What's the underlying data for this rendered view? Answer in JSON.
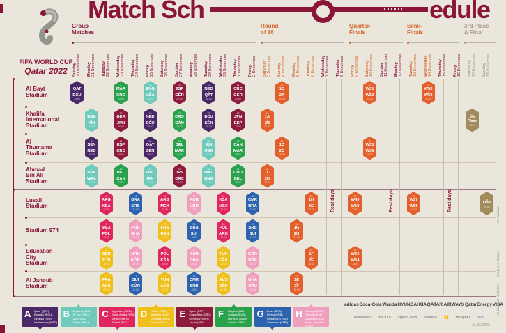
{
  "title": {
    "part1": "Match Sch",
    "part2": "edule"
  },
  "logo": {
    "line1": "FIFA WORLD CUP",
    "line2": "Qatar 2022"
  },
  "palette": {
    "A": "#4A2767",
    "B": "#6FCABB",
    "C": "#E0265F",
    "D": "#EFBF1B",
    "E": "#8D1B3D",
    "F": "#2AA24D",
    "G": "#2D62AE",
    "H": "#EF9EBE",
    "KO": "#E35F2C",
    "GOLD": "#A18A5B",
    "maroon": "#8A1538",
    "orange": "#D4692F",
    "gray": "#A49A8B"
  },
  "sections": [
    {
      "id": "group",
      "lines": "Group\nMatches"
    },
    {
      "id": "r16",
      "lines": "Round\nof 16"
    },
    {
      "id": "qf",
      "lines": "Quarter-\nFinals"
    },
    {
      "id": "sf",
      "lines": "Semi-\nFinals"
    },
    {
      "id": "third",
      "lines": "3rd Place\n& Final"
    }
  ],
  "dates": [
    {
      "day": "Sunday",
      "date": "20 November",
      "tone": "m"
    },
    {
      "day": "Monday",
      "date": "21 November",
      "tone": "m"
    },
    {
      "day": "Tuesday",
      "date": "22 November",
      "tone": "m"
    },
    {
      "day": "Wednesday",
      "date": "23 November",
      "tone": "m"
    },
    {
      "day": "Thursday",
      "date": "24 November",
      "tone": "m"
    },
    {
      "day": "Friday",
      "date": "25 November",
      "tone": "m"
    },
    {
      "day": "Saturday",
      "date": "26 November",
      "tone": "m"
    },
    {
      "day": "Sunday",
      "date": "27 November",
      "tone": "m"
    },
    {
      "day": "Monday",
      "date": "28 November",
      "tone": "m"
    },
    {
      "day": "Tuesday",
      "date": "29 November",
      "tone": "m"
    },
    {
      "day": "Wednesday",
      "date": "30 November",
      "tone": "m"
    },
    {
      "day": "Thursday",
      "date": "1 December",
      "tone": "m"
    },
    {
      "day": "Friday",
      "date": "2 December",
      "tone": "m"
    },
    {
      "day": "Saturday",
      "date": "3 December",
      "tone": "o"
    },
    {
      "day": "Sunday",
      "date": "4 December",
      "tone": "o"
    },
    {
      "day": "Monday",
      "date": "5 December",
      "tone": "o"
    },
    {
      "day": "Tuesday",
      "date": "6 December",
      "tone": "o"
    },
    {
      "day": "Wednesday",
      "date": "7 December",
      "tone": "m"
    },
    {
      "day": "Thursday",
      "date": "8 December",
      "tone": "m"
    },
    {
      "day": "Friday",
      "date": "9 December",
      "tone": "o"
    },
    {
      "day": "Saturday",
      "date": "10 December",
      "tone": "o"
    },
    {
      "day": "Sunday",
      "date": "11 December",
      "tone": "m"
    },
    {
      "day": "Monday",
      "date": "12 December",
      "tone": "m"
    },
    {
      "day": "Tuesday",
      "date": "13 December",
      "tone": "o"
    },
    {
      "day": "Wednesday",
      "date": "14 December",
      "tone": "o"
    },
    {
      "day": "Thursday",
      "date": "15 December",
      "tone": "m"
    },
    {
      "day": "Friday",
      "date": "16 December",
      "tone": "m"
    },
    {
      "day": "Saturday",
      "date": "17 December",
      "tone": "g"
    },
    {
      "day": "Sunday",
      "date": "18 December",
      "tone": "g"
    }
  ],
  "stadiums": [
    {
      "name": "Al Bayt Stadium",
      "lines": "Al Bayt\nStadium"
    },
    {
      "name": "Khalifa International Stadium",
      "lines": "Khalifa\nInternational\nStadium"
    },
    {
      "name": "Al Thumama Stadium",
      "lines": "Al\nThumama\nStadium"
    },
    {
      "name": "Ahmad Bin Ali Stadium",
      "lines": "Ahmad\nBin Ali\nStadium"
    },
    {
      "name": "Lusail Stadium",
      "lines": "Lusail\nStadium"
    },
    {
      "name": "Stadium 974",
      "lines": "Stadium 974"
    },
    {
      "name": "Education City Stadium",
      "lines": "Education\nCity\nStadium"
    },
    {
      "name": "Al Janoub Stadium",
      "lines": "Al Janoub\nStadium"
    }
  ],
  "matches": [
    {
      "row": 0,
      "col": 0,
      "num": "1",
      "a": "QAT",
      "b": "ECU",
      "time": "19:00",
      "c": "A"
    },
    {
      "row": 0,
      "col": 3,
      "num": "9",
      "a": "MAR",
      "b": "CRO",
      "time": "13:00",
      "c": "F"
    },
    {
      "row": 0,
      "col": 5,
      "num": "20",
      "a": "ENG",
      "b": "USA",
      "time": "22:00",
      "c": "B"
    },
    {
      "row": 0,
      "col": 7,
      "num": "28",
      "a": "ESP",
      "b": "GER",
      "time": "22:00",
      "c": "E"
    },
    {
      "row": 0,
      "col": 9,
      "num": "34",
      "a": "NED",
      "b": "QAT",
      "time": "18:00",
      "c": "A"
    },
    {
      "row": 0,
      "col": 11,
      "num": "44",
      "a": "CRC",
      "b": "GER",
      "time": "22:00",
      "c": "E"
    },
    {
      "row": 0,
      "col": 14,
      "num": "52",
      "a": "1B",
      "b": "2A",
      "time": "22:00",
      "c": "KO"
    },
    {
      "row": 0,
      "col": 20,
      "num": "60",
      "a": "W51",
      "b": "W52",
      "time": "22:00",
      "c": "KO"
    },
    {
      "row": 0,
      "col": 24,
      "num": "62",
      "a": "W59",
      "b": "W60",
      "time": "22:00",
      "c": "KO"
    },
    {
      "row": 1,
      "col": 1,
      "num": "2",
      "a": "ENG",
      "b": "IRN",
      "time": "16:00",
      "c": "B"
    },
    {
      "row": 1,
      "col": 3,
      "num": "10",
      "a": "GER",
      "b": "JPN",
      "time": "16:00",
      "c": "E"
    },
    {
      "row": 1,
      "col": 5,
      "num": "19",
      "a": "NED",
      "b": "ECU",
      "time": "19:00",
      "c": "A"
    },
    {
      "row": 1,
      "col": 7,
      "num": "27",
      "a": "CRO",
      "b": "CAN",
      "time": "19:00",
      "c": "F"
    },
    {
      "row": 1,
      "col": 9,
      "num": "33",
      "a": "ECU",
      "b": "SEN",
      "time": "18:00",
      "c": "A"
    },
    {
      "row": 1,
      "col": 11,
      "num": "43",
      "a": "JPN",
      "b": "ESP",
      "time": "22:00",
      "c": "E"
    },
    {
      "row": 1,
      "col": 13,
      "num": "49",
      "a": "1A",
      "b": "2B",
      "time": "18:00",
      "c": "KO"
    },
    {
      "row": 1,
      "col": 27,
      "num": "63",
      "a": "3rd",
      "b": "Place",
      "time": "18:00",
      "c": "GOLD"
    },
    {
      "row": 2,
      "col": 1,
      "num": "3",
      "a": "SEN",
      "b": "NED",
      "time": "19:00",
      "c": "A"
    },
    {
      "row": 2,
      "col": 3,
      "num": "11",
      "a": "ESP",
      "b": "CRC",
      "time": "19:00",
      "c": "E"
    },
    {
      "row": 2,
      "col": 5,
      "num": "18",
      "a": "QAT",
      "b": "SEN",
      "time": "16:00",
      "c": "A"
    },
    {
      "row": 2,
      "col": 7,
      "num": "26",
      "a": "BEL",
      "b": "MAR",
      "time": "16:00",
      "c": "F"
    },
    {
      "row": 2,
      "col": 9,
      "num": "35",
      "a": "IRN",
      "b": "USA",
      "time": "22:00",
      "c": "B"
    },
    {
      "row": 2,
      "col": 11,
      "num": "42",
      "a": "CAN",
      "b": "MAR",
      "time": "18:00",
      "c": "F"
    },
    {
      "row": 2,
      "col": 14,
      "num": "51",
      "a": "1D",
      "b": "2C",
      "time": "18:00",
      "c": "KO"
    },
    {
      "row": 2,
      "col": 20,
      "num": "59",
      "a": "W55",
      "b": "W56",
      "time": "18:00",
      "c": "KO"
    },
    {
      "row": 3,
      "col": 1,
      "num": "4",
      "a": "USA",
      "b": "WAL",
      "time": "22:00",
      "c": "B"
    },
    {
      "row": 3,
      "col": 3,
      "num": "12",
      "a": "BEL",
      "b": "CAN",
      "time": "22:00",
      "c": "F"
    },
    {
      "row": 3,
      "col": 5,
      "num": "17",
      "a": "WAL",
      "b": "IRN",
      "time": "13:00",
      "c": "B"
    },
    {
      "row": 3,
      "col": 7,
      "num": "25",
      "a": "JPN",
      "b": "CRC",
      "time": "13:00",
      "c": "E"
    },
    {
      "row": 3,
      "col": 9,
      "num": "36",
      "a": "WAL",
      "b": "ENG",
      "time": "22:00",
      "c": "B"
    },
    {
      "row": 3,
      "col": 11,
      "num": "41",
      "a": "CRO",
      "b": "BEL",
      "time": "18:00",
      "c": "F"
    },
    {
      "row": 3,
      "col": 13,
      "num": "50",
      "a": "1C",
      "b": "2D",
      "time": "22:00",
      "c": "KO"
    },
    {
      "row": 4,
      "col": 2,
      "num": "5",
      "a": "ARG",
      "b": "KSA",
      "time": "13:00",
      "c": "C"
    },
    {
      "row": 4,
      "col": 4,
      "num": "16",
      "a": "BRA",
      "b": "SRB",
      "time": "22:00",
      "c": "G"
    },
    {
      "row": 4,
      "col": 6,
      "num": "24",
      "a": "ARG",
      "b": "MEX",
      "time": "22:00",
      "c": "C"
    },
    {
      "row": 4,
      "col": 8,
      "num": "32",
      "a": "POR",
      "b": "URU",
      "time": "22:00",
      "c": "H"
    },
    {
      "row": 4,
      "col": 10,
      "num": "40",
      "a": "KSA",
      "b": "MEX",
      "time": "22:00",
      "c": "C"
    },
    {
      "row": 4,
      "col": 12,
      "num": "48",
      "a": "CMR",
      "b": "BRA",
      "time": "22:00",
      "c": "G"
    },
    {
      "row": 4,
      "col": 16,
      "num": "56",
      "a": "1H",
      "b": "2G",
      "time": "22:00",
      "c": "KO"
    },
    {
      "row": 4,
      "col": 19,
      "num": "58",
      "a": "W49",
      "b": "W50",
      "time": "22:00",
      "c": "KO"
    },
    {
      "row": 4,
      "col": 23,
      "num": "61",
      "a": "W57",
      "b": "W58",
      "time": "22:00",
      "c": "KO"
    },
    {
      "row": 4,
      "col": 28,
      "num": "64",
      "a": "Final",
      "b": "",
      "time": "18:00",
      "c": "GOLD"
    },
    {
      "row": 5,
      "col": 2,
      "num": "7",
      "a": "MEX",
      "b": "POL",
      "time": "19:00",
      "c": "C"
    },
    {
      "row": 5,
      "col": 4,
      "num": "15",
      "a": "POR",
      "b": "GHA",
      "time": "19:00",
      "c": "H"
    },
    {
      "row": 5,
      "col": 6,
      "num": "23",
      "a": "FRA",
      "b": "DEN",
      "time": "19:00",
      "c": "D"
    },
    {
      "row": 5,
      "col": 8,
      "num": "31",
      "a": "BRA",
      "b": "SUI",
      "time": "19:00",
      "c": "G"
    },
    {
      "row": 5,
      "col": 10,
      "num": "39",
      "a": "POL",
      "b": "ARG",
      "time": "22:00",
      "c": "C"
    },
    {
      "row": 5,
      "col": 12,
      "num": "47",
      "a": "SRB",
      "b": "SUI",
      "time": "22:00",
      "c": "G"
    },
    {
      "row": 5,
      "col": 15,
      "num": "54",
      "a": "1G",
      "b": "2H",
      "time": "22:00",
      "c": "KO"
    },
    {
      "row": 6,
      "col": 2,
      "num": "6",
      "a": "DEN",
      "b": "TUN",
      "time": "16:00",
      "c": "D"
    },
    {
      "row": 6,
      "col": 4,
      "num": "14",
      "a": "URU",
      "b": "KOR",
      "time": "16:00",
      "c": "H"
    },
    {
      "row": 6,
      "col": 6,
      "num": "22",
      "a": "POL",
      "b": "KSA",
      "time": "16:00",
      "c": "C"
    },
    {
      "row": 6,
      "col": 8,
      "num": "30",
      "a": "KOR",
      "b": "GHA",
      "time": "16:00",
      "c": "H"
    },
    {
      "row": 6,
      "col": 10,
      "num": "37",
      "a": "TUN",
      "b": "FRA",
      "time": "18:00",
      "c": "D"
    },
    {
      "row": 6,
      "col": 12,
      "num": "45",
      "a": "KOR",
      "b": "POR",
      "time": "18:00",
      "c": "H"
    },
    {
      "row": 6,
      "col": 16,
      "num": "55",
      "a": "1F",
      "b": "2E",
      "time": "18:00",
      "c": "KO"
    },
    {
      "row": 6,
      "col": 19,
      "num": "57",
      "a": "W53",
      "b": "W54",
      "time": "18:00",
      "c": "KO"
    },
    {
      "row": 7,
      "col": 2,
      "num": "8",
      "a": "FRA",
      "b": "AUS",
      "time": "22:00",
      "c": "D"
    },
    {
      "row": 7,
      "col": 4,
      "num": "13",
      "a": "SUI",
      "b": "CMR",
      "time": "13:00",
      "c": "G"
    },
    {
      "row": 7,
      "col": 6,
      "num": "21",
      "a": "TUN",
      "b": "AUS",
      "time": "13:00",
      "c": "D"
    },
    {
      "row": 7,
      "col": 8,
      "num": "29",
      "a": "CMR",
      "b": "SRB",
      "time": "13:00",
      "c": "G"
    },
    {
      "row": 7,
      "col": 10,
      "num": "38",
      "a": "AUS",
      "b": "DEN",
      "time": "18:00",
      "c": "D"
    },
    {
      "row": 7,
      "col": 12,
      "num": "46",
      "a": "GHA",
      "b": "URU",
      "time": "18:00",
      "c": "H"
    },
    {
      "row": 7,
      "col": 15,
      "num": "53",
      "a": "1E",
      "b": "2F",
      "time": "18:00",
      "c": "KO"
    }
  ],
  "rest": {
    "label": "Rest days"
  },
  "legend": [
    {
      "letter": "A",
      "c": "A",
      "teams": "Qatar (QAT)\nEcuador (ECU)\nSenegal (SEN)\nNetherlands (NED)"
    },
    {
      "letter": "B",
      "c": "B",
      "teams": "England (ENG)\nIR Iran (IRN)\nUSA (USA)\nWales (WAL)"
    },
    {
      "letter": "C",
      "c": "C",
      "teams": "Argentina (ARG)\nSaudi Arabia (KSA)\nMexico (MEX)\nPoland (POL)"
    },
    {
      "letter": "D",
      "c": "D",
      "teams": "France (FRA)\nAustralia (AUS)\nDenmark (DEN)\nTunisia (TUN)"
    },
    {
      "letter": "E",
      "c": "E",
      "teams": "Spain (ESP)\nCosta Rica (CRC)\nGermany (GER)\nJapan (JPN)"
    },
    {
      "letter": "F",
      "c": "F",
      "teams": "Belgium (BEL)\nCanada (CAN)\nMorocco (MAR)\nCroatia (CRO)"
    },
    {
      "letter": "G",
      "c": "G",
      "teams": "Brazil (BRA)\nSerbia (SRB)\nSwitzerland (SUI)\nCameroon (CMR)"
    },
    {
      "letter": "H",
      "c": "H",
      "teams": "Portugal (POR)\nGhana (GHA)\nUruguay (URU)\nKorea Republic (KOR)"
    }
  ],
  "sponsors_row1": [
    "adidas",
    "Coca-Cola",
    "Wanda",
    "HYUNDAI",
    "KIA",
    "QATAR AIRWAYS",
    "QatarEnergy",
    "VISA"
  ],
  "sponsors_row2": [
    "Budweiser",
    "BYJU'S",
    "crypto.com",
    "Hisense",
    "M",
    "Mengniu",
    "vivo"
  ],
  "footnotes": [
    "W = Winner",
    "Subject to change",
    "All times are local time"
  ],
  "stamp": "11.06.2022"
}
